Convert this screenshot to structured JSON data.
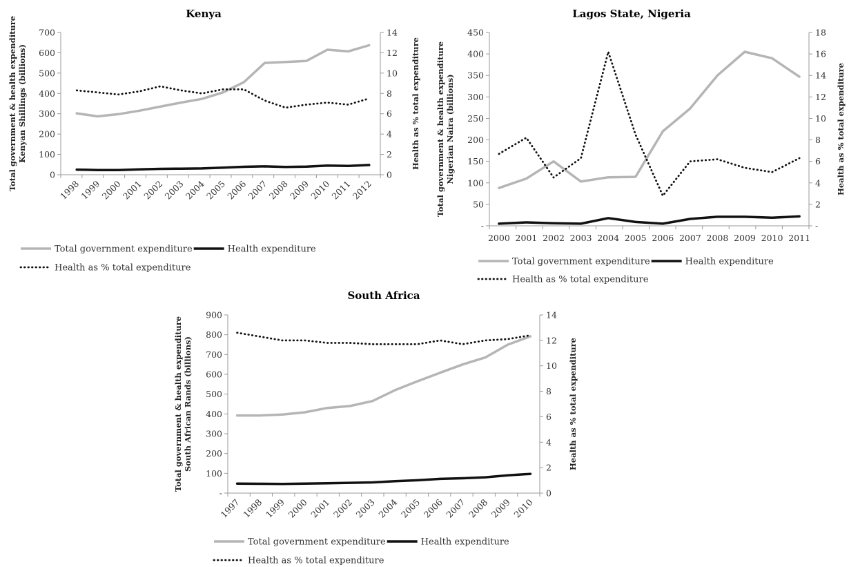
{
  "colors": {
    "total": "#b5b5b5",
    "health": "#111111",
    "pct": "#111111",
    "axis": "#9a9a9a"
  },
  "legend": {
    "total": "Total government expenditure",
    "health": "Health expenditure",
    "pct": "Health as % total expenditure"
  },
  "chart_data": [
    {
      "type": "line",
      "title": "Kenya",
      "ylabel_line1": "Total government & health expenditure",
      "ylabel_line2": "Kenyan Shillings (billions)",
      "y2label": "Health as % total expenditure",
      "ylim": [
        0,
        700
      ],
      "y2lim": [
        0,
        14
      ],
      "yticks": [
        "0",
        "100",
        "200",
        "300",
        "400",
        "500",
        "600",
        "700"
      ],
      "y2ticks": [
        "0",
        "2",
        "4",
        "6",
        "8",
        "10",
        "12",
        "14"
      ],
      "categories": [
        "1998",
        "1999",
        "2000",
        "2001",
        "2002",
        "2003",
        "2004",
        "2005",
        "2006",
        "2007",
        "2008",
        "2009",
        "2010",
        "2011",
        "2012"
      ],
      "series": [
        {
          "name": "Total government expenditure",
          "axis": "left",
          "values": [
            302,
            287,
            298,
            315,
            335,
            355,
            373,
            405,
            455,
            550,
            555,
            560,
            615,
            607,
            637
          ]
        },
        {
          "name": "Health expenditure",
          "axis": "left",
          "values": [
            25,
            23,
            23,
            26,
            29,
            30,
            31,
            35,
            39,
            41,
            38,
            40,
            45,
            43,
            48
          ]
        },
        {
          "name": "Health as % total expenditure",
          "axis": "right",
          "values": [
            8.3,
            8.1,
            7.9,
            8.2,
            8.7,
            8.3,
            8.0,
            8.4,
            8.4,
            7.3,
            6.6,
            6.9,
            7.1,
            6.9,
            7.5
          ]
        }
      ]
    },
    {
      "type": "line",
      "title": "Lagos State, Nigeria",
      "ylabel_line1": "Total government & health expenditure",
      "ylabel_line2": "Nigerian Naira (billions)",
      "y2label": "Health as % total expenditure",
      "ylim": [
        0,
        450
      ],
      "y2lim": [
        0,
        18
      ],
      "yticks": [
        "-",
        "50",
        "100",
        "150",
        "200",
        "250",
        "300",
        "350",
        "400",
        "450"
      ],
      "y2ticks": [
        "-",
        "2",
        "4",
        "6",
        "8",
        "10",
        "12",
        "14",
        "16",
        "18"
      ],
      "categories": [
        "2000",
        "2001",
        "2002",
        "2003",
        "2004",
        "2005",
        "2006",
        "2007",
        "2008",
        "2009",
        "2010",
        "2011"
      ],
      "series": [
        {
          "name": "Total government expenditure",
          "axis": "left",
          "values": [
            88,
            110,
            150,
            103,
            113,
            114,
            220,
            273,
            350,
            405,
            390,
            347
          ]
        },
        {
          "name": "Health expenditure",
          "axis": "left",
          "values": [
            5,
            8,
            6,
            5,
            18,
            9,
            5,
            16,
            21,
            21,
            19,
            22
          ]
        },
        {
          "name": "Health as % total expenditure",
          "axis": "right",
          "values": [
            6.7,
            8.2,
            4.5,
            6.3,
            16.2,
            8.5,
            2.8,
            6.0,
            6.2,
            5.4,
            5.0,
            6.3
          ]
        }
      ]
    },
    {
      "type": "line",
      "title": "South Africa",
      "ylabel_line1": "Total government & health expenditure",
      "ylabel_line2": "South African Rands (billions)",
      "y2label": "Health as % total expenditure",
      "ylim": [
        0,
        900
      ],
      "y2lim": [
        0,
        14
      ],
      "yticks": [
        "-",
        "100",
        "200",
        "300",
        "400",
        "500",
        "600",
        "700",
        "800",
        "900"
      ],
      "y2ticks": [
        "0",
        "2",
        "4",
        "6",
        "8",
        "10",
        "12",
        "14"
      ],
      "categories": [
        "1997",
        "1998",
        "1999",
        "2000",
        "2001",
        "2002",
        "2003",
        "2004",
        "2005",
        "2006",
        "2007",
        "2008",
        "2009",
        "2010"
      ],
      "series": [
        {
          "name": "Total government expenditure",
          "axis": "left",
          "values": [
            392,
            392,
            397,
            408,
            430,
            440,
            465,
            520,
            565,
            608,
            650,
            685,
            750,
            792
          ]
        },
        {
          "name": "Health expenditure",
          "axis": "left",
          "values": [
            48,
            47,
            46,
            48,
            50,
            52,
            54,
            60,
            65,
            72,
            75,
            80,
            90,
            97
          ]
        },
        {
          "name": "Health as % total expenditure",
          "axis": "right",
          "values": [
            12.6,
            12.3,
            12.0,
            12.0,
            11.8,
            11.8,
            11.7,
            11.7,
            11.7,
            12.0,
            11.7,
            12.0,
            12.1,
            12.4
          ]
        }
      ]
    }
  ]
}
